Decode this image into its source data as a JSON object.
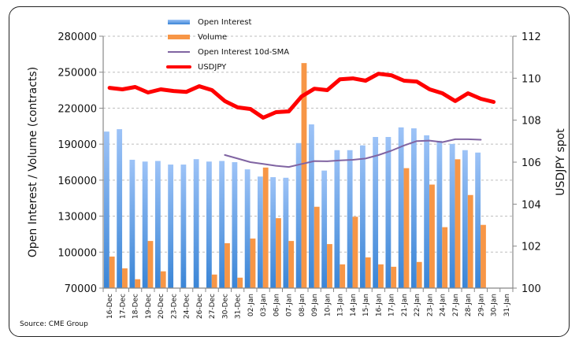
{
  "chart_data": {
    "type": "bar",
    "title": "",
    "source": "Source: CME Group",
    "categories": [
      "16-Dec",
      "17-Dec",
      "18-Dec",
      "19-Dec",
      "20-Dec",
      "23-Dec",
      "24-Dec",
      "26-Dec",
      "27-Dec",
      "30-Dec",
      "31-Dec",
      "02-Jan",
      "03-Jan",
      "06-Jan",
      "07-Jan",
      "08-Jan",
      "09-Jan",
      "10-Jan",
      "13-Jan",
      "14-Jan",
      "15-Jan",
      "16-Jan",
      "17-Jan",
      "21-Jan",
      "22-Jan",
      "23-Jan",
      "24-Jan",
      "27-Jan",
      "28-Jan",
      "29-Jan",
      "30-Jan",
      "31-Jan"
    ],
    "ylabel": "Open Interest / Volume (contracts)",
    "y2label": "USDJPY spot",
    "ylim": [
      70000,
      280000
    ],
    "yticks": [
      70000,
      100000,
      130000,
      160000,
      190000,
      220000,
      250000,
      280000
    ],
    "y2lim": [
      100,
      112
    ],
    "y2ticks": [
      100,
      102,
      104,
      106,
      108,
      110,
      112
    ],
    "grid": true,
    "legend_position": "top-center",
    "series": [
      {
        "name": "Open Interest",
        "type": "bar",
        "axis": "left",
        "color": "#5b9bd5",
        "values": [
          200500,
          202500,
          177000,
          175500,
          176000,
          173000,
          173000,
          177500,
          175500,
          176000,
          175000,
          169000,
          163000,
          162500,
          162000,
          190900,
          206500,
          168000,
          185000,
          185000,
          189000,
          196000,
          196000,
          204000,
          203200,
          197400,
          192800,
          190200,
          185000,
          183000,
          null,
          null
        ]
      },
      {
        "name": "Volume",
        "type": "bar",
        "axis": "left",
        "color": "#f79646",
        "values": [
          96300,
          86500,
          77400,
          109300,
          84000,
          null,
          null,
          null,
          81300,
          107400,
          78700,
          111300,
          170500,
          128300,
          109300,
          257600,
          137800,
          106700,
          89800,
          129500,
          95600,
          89800,
          87800,
          170000,
          91800,
          156300,
          120800,
          177400,
          147600,
          122700,
          null,
          null
        ]
      },
      {
        "name": "Open Interest 10d-SMA",
        "type": "line",
        "axis": "left",
        "color": "#8064a2",
        "values": [
          null,
          null,
          null,
          null,
          null,
          null,
          null,
          null,
          null,
          181000,
          178000,
          175000,
          173500,
          172000,
          171000,
          173500,
          175900,
          175700,
          176500,
          177000,
          178000,
          180900,
          184500,
          188900,
          192600,
          193000,
          191700,
          194100,
          194100,
          193700,
          null,
          null
        ]
      },
      {
        "name": "USDJPY",
        "type": "line",
        "axis": "right",
        "color": "#ff0000",
        "values": [
          109.54,
          109.47,
          109.58,
          109.32,
          109.47,
          109.39,
          109.35,
          109.62,
          109.43,
          108.91,
          108.61,
          108.53,
          108.12,
          108.38,
          108.42,
          109.13,
          109.5,
          109.43,
          109.95,
          109.99,
          109.88,
          110.21,
          110.14,
          109.88,
          109.84,
          109.47,
          109.28,
          108.91,
          109.28,
          109.02,
          108.87,
          null
        ]
      }
    ]
  }
}
